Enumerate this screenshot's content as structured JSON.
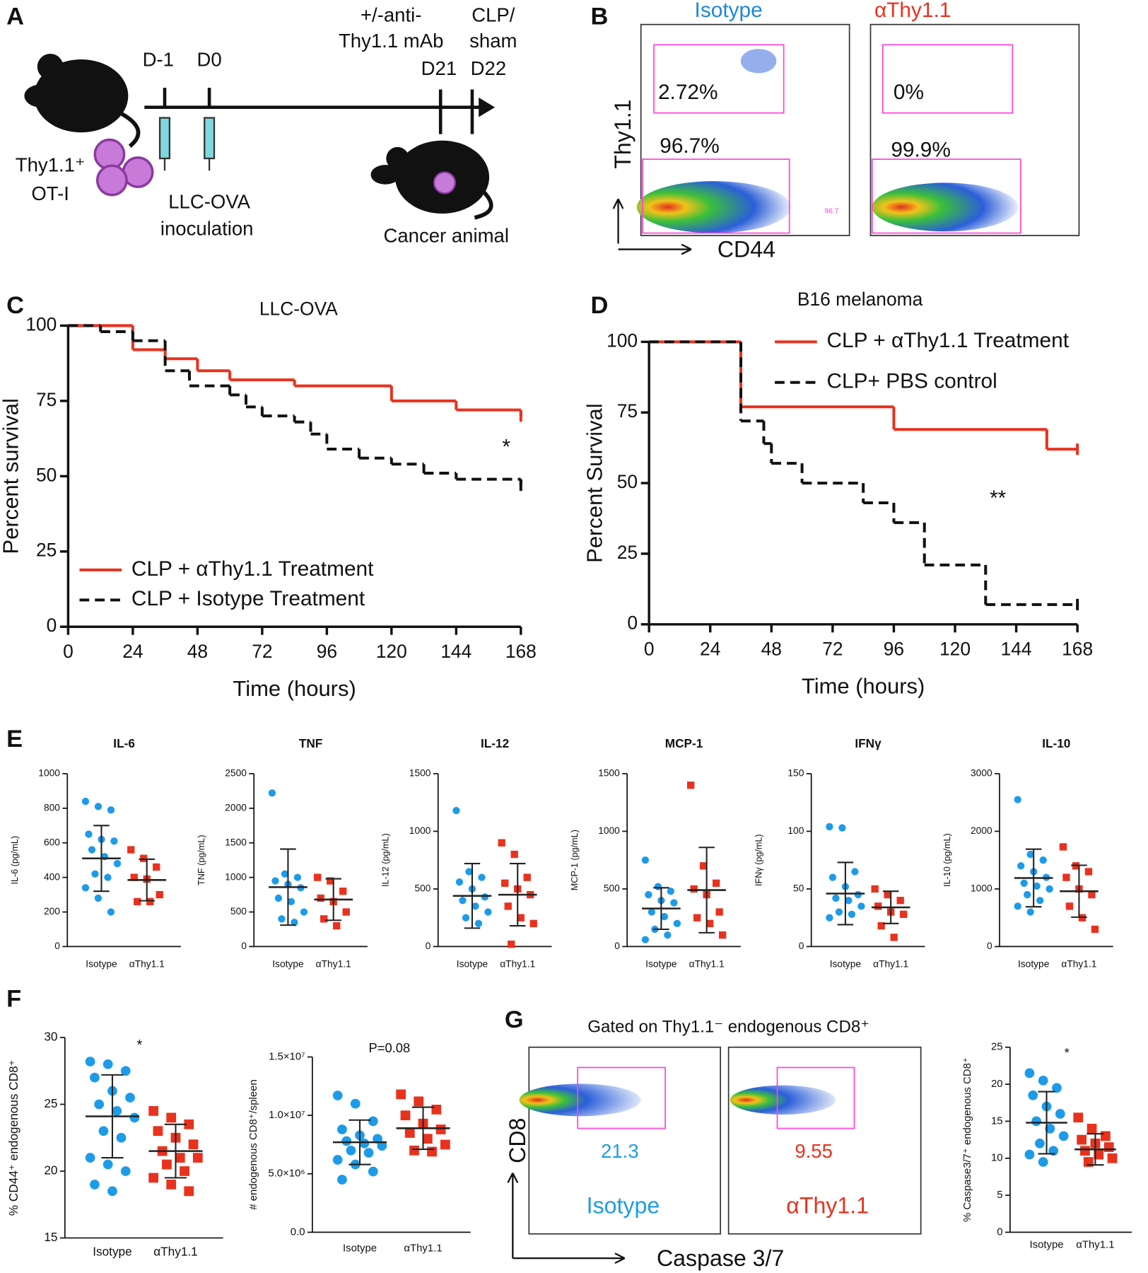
{
  "panel_a": {
    "letter": "A",
    "timeline": [
      "D-1",
      "D0",
      "D21",
      "D22"
    ],
    "treatment": [
      "+/-anti-",
      "Thy1.1 mAb"
    ],
    "surgery": [
      "CLP/",
      "sham"
    ],
    "cells": [
      "Thy1.1⁺",
      "OT-I"
    ],
    "inoculation": [
      "LLC-OVA",
      "inoculation"
    ],
    "result": "Cancer animal"
  },
  "panel_b": {
    "letter": "B",
    "y_label": "Thy1.1",
    "x_label": "CD44",
    "plots": [
      {
        "title": "Isotype",
        "color": "#1e88d8",
        "upper_gate": "2.72%",
        "lower_gate": "96.7%",
        "gate_stat": "96.7"
      },
      {
        "title": "αThy1.1",
        "color": "#e8321e",
        "upper_gate": "0%",
        "lower_gate": "99.9%"
      }
    ]
  },
  "panel_g_flow": {
    "letter": "G",
    "title": "Gated on Thy1.1⁻ endogenous CD8⁺",
    "y_label": "CD8",
    "x_label": "Caspase 3/7",
    "plots": [
      {
        "name": "Isotype",
        "gate": "21.3",
        "color": "#1e9be8"
      },
      {
        "name": "αThy1.1",
        "gate": "9.55",
        "color": "#e8321e"
      }
    ]
  },
  "chart_data": [
    {
      "type": "step",
      "panel": "C",
      "title": "LLC-OVA",
      "x_label": "Time (hours)",
      "y_label": "Percent survival",
      "annotation": "*",
      "legend": "lower left",
      "xlim": [
        0,
        168
      ],
      "xticks": [
        0,
        24,
        48,
        72,
        96,
        120,
        144,
        168
      ],
      "ylim": [
        0,
        100
      ],
      "yticks": [
        0,
        25,
        50,
        75,
        100
      ],
      "series": [
        {
          "name": "CLP + αThy1.1 Treatment",
          "color": "#e8321e",
          "dashed": false,
          "x": [
            0,
            24,
            36,
            48,
            60,
            84,
            120,
            144,
            168
          ],
          "values": [
            100,
            92,
            89,
            85,
            82,
            80,
            75,
            72,
            70
          ]
        },
        {
          "name": "CLP + Isotype Treatment",
          "color": "#111111",
          "dashed": true,
          "x": [
            0,
            12,
            24,
            36,
            45,
            60,
            66,
            72,
            84,
            90,
            96,
            108,
            120,
            132,
            144,
            168
          ],
          "values": [
            100,
            98,
            95,
            85,
            80,
            77,
            73,
            70,
            68,
            64,
            59,
            56,
            54,
            51,
            49,
            47
          ]
        }
      ]
    },
    {
      "type": "step",
      "panel": "D",
      "title": "B16 melanoma",
      "x_label": "Time (hours)",
      "y_label": "Percent Survival",
      "annotation": "**",
      "legend": "upper right",
      "xlim": [
        0,
        168
      ],
      "xticks": [
        0,
        24,
        48,
        72,
        96,
        120,
        144,
        168
      ],
      "ylim": [
        0,
        100
      ],
      "yticks": [
        0,
        25,
        50,
        75,
        100
      ],
      "series": [
        {
          "name": "CLP + αThy1.1 Treatment",
          "color": "#e8321e",
          "dashed": false,
          "x": [
            0,
            36,
            96,
            156,
            168
          ],
          "values": [
            100,
            77,
            69,
            62,
            62
          ]
        },
        {
          "name": "CLP+ PBS control",
          "color": "#111111",
          "dashed": true,
          "x": [
            0,
            36,
            45,
            48,
            60,
            84,
            96,
            108,
            132,
            168
          ],
          "values": [
            100,
            72,
            64,
            57,
            50,
            43,
            36,
            21,
            7,
            7
          ]
        }
      ]
    },
    {
      "type": "dotplot",
      "panel": "E",
      "title": "IL-6",
      "y_label": "IL-6 (pg/mL)",
      "categories": [
        "Isotype",
        "αThy1.1"
      ],
      "ylim": [
        0,
        1000
      ],
      "yticks": [
        0,
        200,
        400,
        600,
        800,
        1000
      ],
      "groups": [
        {
          "color": "#1e9be8",
          "values": [
            840,
            810,
            790,
            650,
            620,
            610,
            560,
            520,
            480,
            420,
            400,
            340,
            280,
            200
          ],
          "mean": 510,
          "sd": 190
        },
        {
          "color": "#e8321e",
          "values": [
            560,
            510,
            460,
            400,
            390,
            300,
            260,
            260
          ],
          "mean": 385,
          "sd": 120
        }
      ]
    },
    {
      "type": "dotplot",
      "title": "TNF",
      "y_label": "TNF (pg/mL)",
      "categories": [
        "Isotype",
        "αThy1.1"
      ],
      "ylim": [
        0,
        2500
      ],
      "yticks": [
        0,
        500,
        1000,
        1500,
        2000,
        2500
      ],
      "groups": [
        {
          "color": "#1e9be8",
          "values": [
            2220,
            1050,
            1000,
            950,
            900,
            850,
            700,
            650,
            500,
            400,
            350
          ],
          "mean": 860,
          "sd": 550
        },
        {
          "color": "#e8321e",
          "values": [
            1000,
            950,
            800,
            700,
            650,
            500,
            400,
            300
          ],
          "mean": 680,
          "sd": 300
        }
      ]
    },
    {
      "type": "dotplot",
      "title": "IL-12",
      "y_label": "IL-12 (pg/mL)",
      "categories": [
        "Isotype",
        "αThy1.1"
      ],
      "ylim": [
        0,
        1500
      ],
      "yticks": [
        0,
        500,
        1000,
        1500
      ],
      "groups": [
        {
          "color": "#1e9be8",
          "values": [
            1180,
            650,
            600,
            560,
            500,
            430,
            400,
            350,
            300,
            250,
            200
          ],
          "mean": 440,
          "sd": 280
        },
        {
          "color": "#e8321e",
          "values": [
            900,
            800,
            600,
            550,
            500,
            450,
            350,
            250,
            200,
            20
          ],
          "mean": 450,
          "sd": 270
        }
      ]
    },
    {
      "type": "dotplot",
      "title": "MCP-1",
      "y_label": "MCP-1 (pg/mL)",
      "categories": [
        "Isotype",
        "αThy1.1"
      ],
      "ylim": [
        0,
        1500
      ],
      "yticks": [
        0,
        500,
        1000,
        1500
      ],
      "groups": [
        {
          "color": "#1e9be8",
          "values": [
            750,
            520,
            480,
            450,
            400,
            380,
            300,
            260,
            200,
            150,
            100,
            60
          ],
          "mean": 330,
          "sd": 180
        },
        {
          "color": "#e8321e",
          "values": [
            1400,
            700,
            550,
            500,
            450,
            300,
            250,
            200,
            100
          ],
          "mean": 490,
          "sd": 370
        }
      ]
    },
    {
      "type": "dotplot",
      "title": "IFNγ",
      "y_label": "IFNγ (pg/mL)",
      "categories": [
        "Isotype",
        "αThy1.1"
      ],
      "ylim": [
        0,
        150
      ],
      "yticks": [
        0,
        50,
        100,
        150
      ],
      "groups": [
        {
          "color": "#1e9be8",
          "values": [
            104,
            103,
            65,
            60,
            52,
            45,
            42,
            40,
            35,
            30,
            28,
            25
          ],
          "mean": 46,
          "sd": 27
        },
        {
          "color": "#e8321e",
          "values": [
            50,
            45,
            40,
            35,
            30,
            28,
            18,
            8
          ],
          "mean": 34,
          "sd": 14
        }
      ]
    },
    {
      "type": "dotplot",
      "title": "IL-10",
      "y_label": "IL-10 (pg/mL)",
      "categories": [
        "Isotype",
        "αThy1.1"
      ],
      "ylim": [
        0,
        3000
      ],
      "yticks": [
        0,
        1000,
        2000,
        3000
      ],
      "groups": [
        {
          "color": "#1e9be8",
          "values": [
            2550,
            1600,
            1500,
            1400,
            1300,
            1200,
            1100,
            1050,
            1000,
            900,
            800,
            700,
            600
          ],
          "mean": 1190,
          "sd": 500
        },
        {
          "color": "#e8321e",
          "values": [
            1730,
            1400,
            1300,
            1200,
            1000,
            900,
            700,
            500,
            300
          ],
          "mean": 960,
          "sd": 450
        }
      ]
    },
    {
      "type": "dotplot",
      "panel": "F",
      "y_label": "% CD44⁺ endogenous CD8⁺",
      "annotation": "*",
      "categories": [
        "Isotype",
        "αThy1.1"
      ],
      "ylim": [
        15,
        30
      ],
      "yticks": [
        15,
        20,
        25,
        30
      ],
      "groups": [
        {
          "color": "#1e9be8",
          "values": [
            28.2,
            28,
            27.5,
            27,
            26,
            25.5,
            25,
            24.5,
            24,
            23,
            22.5,
            21,
            20.5,
            20,
            19,
            18.5
          ],
          "mean": 24.1,
          "sd": 3.1
        },
        {
          "color": "#e8321e",
          "values": [
            24.5,
            24,
            23.5,
            23,
            22.5,
            22,
            21.5,
            21,
            21,
            20.5,
            20,
            19.5,
            19,
            18.5
          ],
          "mean": 21.5,
          "sd": 2
        }
      ]
    },
    {
      "type": "dotplot",
      "y_label": "# endogenous CD8⁺/spleen",
      "annotation": "P=0.08",
      "categories": [
        "Isotype",
        "αThy1.1"
      ],
      "ylim": [
        0,
        15000000
      ],
      "yticks": [
        {
          "value": 0,
          "label": "0.0"
        },
        {
          "value": 5000000,
          "label": "5.0×10⁶"
        },
        {
          "value": 10000000,
          "label": "1.0×10⁷"
        },
        {
          "value": 15000000,
          "label": "1.5×10⁷"
        }
      ],
      "groups": [
        {
          "color": "#1e9be8",
          "values": [
            11700000,
            11000000,
            9500000,
            8800000,
            8300000,
            8000000,
            7800000,
            7600000,
            7400000,
            7000000,
            6800000,
            6200000,
            5800000,
            5200000,
            4500000
          ],
          "mean": 7700000,
          "sd": 1900000
        },
        {
          "color": "#e8321e",
          "values": [
            11800000,
            11200000,
            10500000,
            10000000,
            9300000,
            8800000,
            8500000,
            8000000,
            7500000,
            7000000,
            6900000
          ],
          "mean": 8900000,
          "sd": 1800000
        }
      ]
    },
    {
      "type": "dotplot",
      "y_label": "% Caspase3/7⁺ endogenous CD8⁺",
      "annotation": "*",
      "categories": [
        "Isotype",
        "αThy1.1"
      ],
      "ylim": [
        0,
        25
      ],
      "yticks": [
        0,
        5,
        10,
        15,
        20,
        25
      ],
      "groups": [
        {
          "color": "#1e9be8",
          "values": [
            21.5,
            20.5,
            19.5,
            18.5,
            17,
            16,
            15,
            14,
            13,
            12,
            11,
            10.5,
            9.5
          ],
          "mean": 14.8,
          "sd": 4.2
        },
        {
          "color": "#e8321e",
          "values": [
            15.5,
            14,
            13,
            12.5,
            12,
            11.5,
            11,
            10.5,
            10,
            9.5
          ],
          "mean": 11.2,
          "sd": 2.1
        }
      ]
    }
  ]
}
